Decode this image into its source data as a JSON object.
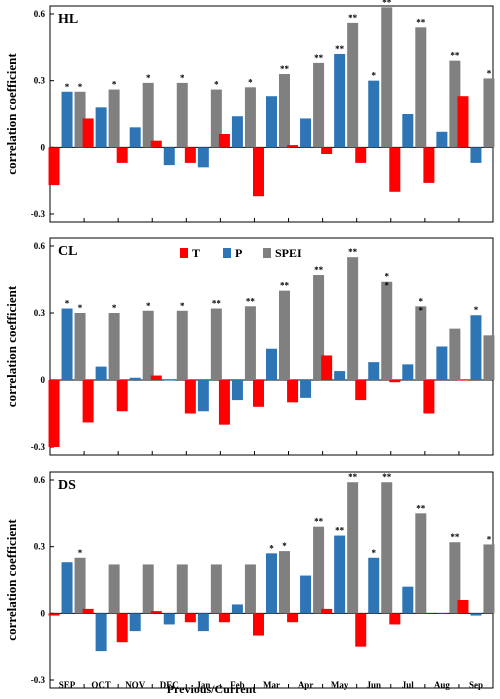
{
  "colors": {
    "T": "#ff0000",
    "P": "#2e75b6",
    "SPEI": "#808080"
  },
  "chart_data": {
    "type": "bar",
    "xlabel": "Previous/Current",
    "ylabel": "correlation coefficient",
    "categories": [
      "SEP",
      "OCT",
      "NOV",
      "DEC",
      "Jan",
      "Feb",
      "Mar",
      "Apr",
      "May",
      "Jun",
      "Jul",
      "Aug",
      "Sep"
    ],
    "ylim": [
      -0.3,
      0.6
    ],
    "yticks": [
      "-0.3",
      "0",
      "0.3",
      "0.6"
    ],
    "legend": {
      "placement": "top-center of second panel",
      "entries": [
        "T",
        "P",
        "SPEI"
      ]
    },
    "panels": [
      {
        "label": "HL",
        "series": [
          {
            "name": "T",
            "values": [
              -0.17,
              0.13,
              -0.07,
              0.03,
              -0.07,
              0.06,
              -0.22,
              0.01,
              -0.03,
              -0.07,
              -0.2,
              -0.16,
              0.23
            ]
          },
          {
            "name": "P",
            "values": [
              0.25,
              0.18,
              0.09,
              -0.08,
              -0.09,
              0.14,
              0.23,
              0.13,
              0.42,
              0.3,
              0.15,
              0.07,
              -0.07
            ]
          },
          {
            "name": "SPEI",
            "values": [
              0.25,
              0.26,
              0.29,
              0.29,
              0.26,
              0.27,
              0.33,
              0.38,
              0.56,
              0.63,
              0.54,
              0.39,
              0.31
            ]
          }
        ],
        "stars": {
          "P": [
            "*",
            "",
            "",
            "",
            "",
            "",
            "",
            "",
            "**",
            "*",
            "",
            "",
            ""
          ],
          "SPEI": [
            "*",
            "*",
            "*",
            "*",
            "*",
            "*",
            "**",
            "**",
            "**",
            "**",
            "**",
            "**",
            "*"
          ]
        }
      },
      {
        "label": "CL",
        "series": [
          {
            "name": "T",
            "values": [
              -0.3,
              -0.19,
              -0.14,
              0.02,
              -0.15,
              -0.2,
              -0.12,
              -0.1,
              0.11,
              -0.09,
              -0.01,
              -0.15,
              0.0
            ]
          },
          {
            "name": "P",
            "values": [
              0.32,
              0.06,
              0.01,
              0.0,
              -0.14,
              -0.09,
              0.14,
              -0.08,
              0.04,
              0.08,
              0.07,
              0.15,
              0.29
            ]
          },
          {
            "name": "SPEI",
            "values": [
              0.3,
              0.3,
              0.31,
              0.31,
              0.32,
              0.33,
              0.4,
              0.47,
              0.55,
              0.44,
              0.33,
              0.23,
              0.2
            ]
          }
        ],
        "stars": {
          "P": [
            "*",
            "",
            "",
            "",
            "",
            "",
            "",
            "",
            "",
            "",
            "",
            "",
            "*"
          ],
          "SPEI": [
            "*",
            "*",
            "*",
            "*",
            "**",
            "**",
            "**",
            "**",
            "**",
            "*\n*",
            "*\n*",
            "",
            ""
          ]
        }
      },
      {
        "label": "DS",
        "series": [
          {
            "name": "T",
            "values": [
              -0.01,
              0.02,
              -0.13,
              0.01,
              -0.04,
              -0.04,
              -0.1,
              -0.04,
              0.02,
              -0.15,
              -0.05,
              0.0,
              0.06
            ]
          },
          {
            "name": "P",
            "values": [
              0.23,
              -0.17,
              -0.08,
              -0.05,
              -0.08,
              0.04,
              0.27,
              0.17,
              0.35,
              0.25,
              0.12,
              0.0,
              -0.01
            ]
          },
          {
            "name": "SPEI",
            "values": [
              0.25,
              0.22,
              0.22,
              0.22,
              0.22,
              0.22,
              0.28,
              0.39,
              0.59,
              0.59,
              0.45,
              0.32,
              0.31
            ]
          }
        ],
        "stars": {
          "P": [
            "",
            "",
            "",
            "",
            "",
            "",
            "*",
            "",
            "**",
            "*",
            "",
            "",
            ""
          ],
          "SPEI": [
            "*",
            "",
            "",
            "",
            "",
            "",
            "*",
            "**",
            "**",
            "**",
            "**",
            "**",
            "*"
          ]
        }
      }
    ]
  }
}
